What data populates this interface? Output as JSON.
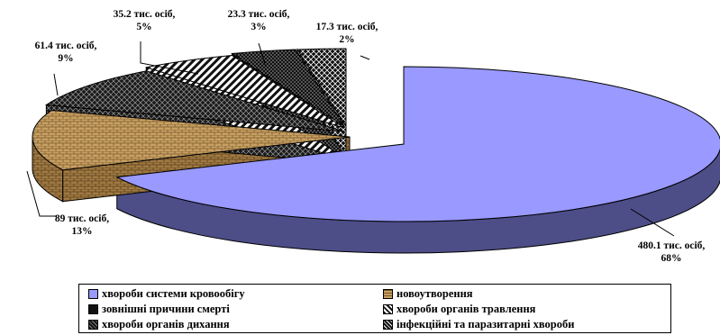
{
  "chart_data": {
    "type": "pie",
    "title": "",
    "series": [
      {
        "name": "хвороби системи кровообігу",
        "value": 480.1,
        "percent": 68,
        "label": "480.1 тис. осіб,",
        "percent_label": "68%",
        "color": "#9999ff",
        "pattern": "solid"
      },
      {
        "name": "новоутворення",
        "value": 89,
        "percent": 13,
        "label": "89 тис. осіб,",
        "percent_label": "13%",
        "color": "#c8a064",
        "pattern": "brick"
      },
      {
        "name": "хвороби органів дихання",
        "value": 61.4,
        "percent": 9,
        "label": "61.4 тис. осіб,",
        "percent_label": "9%",
        "color": "#111111",
        "pattern": "crosshatch-dark"
      },
      {
        "name": "хвороби органів травлення",
        "value": 35.2,
        "percent": 5,
        "label": "35.2 тис. осіб,",
        "percent_label": "5%",
        "color": "#ffffff",
        "pattern": "diagonal-wide"
      },
      {
        "name": "зовнішні причини смерті",
        "value": 23.3,
        "percent": 3,
        "label": "23.3 тис. осіб,",
        "percent_label": "3%",
        "color": "#111111",
        "pattern": "dots-dark"
      },
      {
        "name": "інфекційні та паразитарні хвороби",
        "value": 17.3,
        "percent": 2,
        "label": "17.3 тис. осіб,",
        "percent_label": "2%",
        "color": "#111111",
        "pattern": "diamond"
      }
    ],
    "legend_position": "bottom",
    "style": "3d-exploded"
  },
  "legend": {
    "order": [
      0,
      1,
      4,
      3,
      2,
      5
    ]
  }
}
